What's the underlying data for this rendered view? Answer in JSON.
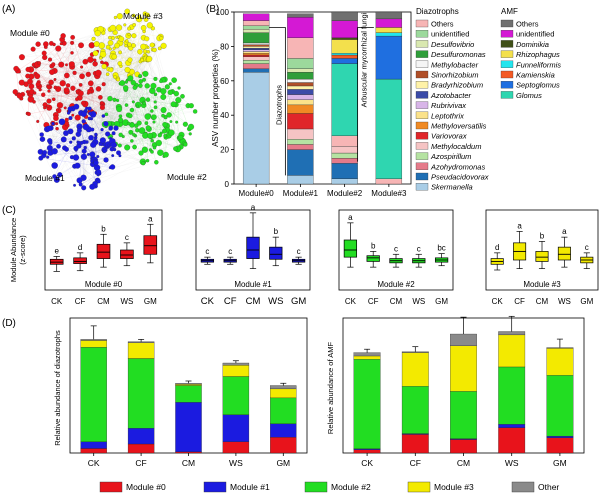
{
  "panel_labels": [
    "(A)",
    "(B)",
    "(C)",
    "(D)"
  ],
  "colors": {
    "m0": "#e8131b",
    "m1": "#1b1be0",
    "m2": "#22dd22",
    "m3": "#f5f500",
    "other": "#8a8a8a"
  },
  "network": {
    "modules": [
      {
        "label": "Module #0"
      },
      {
        "label": "Module #1"
      },
      {
        "label": "Module #2"
      },
      {
        "label": "Module #3"
      }
    ]
  },
  "chart_data": [
    {
      "id": "B",
      "type": "bar",
      "stacked": true,
      "ylabel": "ASV number properties (%)",
      "ylim": [
        0,
        100
      ],
      "yticks": [
        0,
        20,
        40,
        60,
        80,
        100
      ],
      "categories": [
        "Module#0",
        "Module#1",
        "Module#2",
        "Module#3"
      ],
      "annotations": [
        "Diazotrophs",
        "Arbuscular mycorrhizal fungi"
      ],
      "legend_groups": [
        {
          "title": "Diazotrophs",
          "entries": [
            {
              "name": "Others",
              "color": "#f7b5b5"
            },
            {
              "name": "unidentified",
              "color": "#9cd99c"
            },
            {
              "name": "Desulfovibrio",
              "color": "#d9e8b0"
            },
            {
              "name": "Desulfuromonas",
              "color": "#2f9e3a"
            },
            {
              "name": "Methylobacter",
              "color": "#f5f5f5"
            },
            {
              "name": "Sinorhizobium",
              "color": "#b04f28"
            },
            {
              "name": "Bradyrhizobium",
              "color": "#fff2a8"
            },
            {
              "name": "Azotobacter",
              "color": "#3b4ba8"
            },
            {
              "name": "Rubrivivax",
              "color": "#d8b5e8"
            },
            {
              "name": "Leptothrix",
              "color": "#fbe28a"
            },
            {
              "name": "Methyloversatilis",
              "color": "#f08a24"
            },
            {
              "name": "Variovorax",
              "color": "#e0262a"
            },
            {
              "name": "Methylocaldum",
              "color": "#f6c4c4"
            },
            {
              "name": "Azospirillum",
              "color": "#b5e3a2"
            },
            {
              "name": "Azohydromonas",
              "color": "#e57a8a"
            },
            {
              "name": "Pseudacidovorax",
              "color": "#1f6fb4"
            },
            {
              "name": "Skermanella",
              "color": "#a9cde6"
            }
          ]
        },
        {
          "title": "AMF",
          "entries": [
            {
              "name": "Others",
              "color": "#707070"
            },
            {
              "name": "unidentified",
              "color": "#d419d4"
            },
            {
              "name": "Dominikia",
              "color": "#405018"
            },
            {
              "name": "Rhizophagus",
              "color": "#f3e04c"
            },
            {
              "name": "Funneliformis",
              "color": "#22e5ee"
            },
            {
              "name": "Kamienskia",
              "color": "#f45a24"
            },
            {
              "name": "Septoglomus",
              "color": "#1f6fe0"
            },
            {
              "name": "Glomus",
              "color": "#2fd6b0"
            }
          ]
        }
      ],
      "series": [
        {
          "name": "Skermanella",
          "color": "#a9cde6",
          "values": [
            65,
            5,
            3,
            0
          ]
        },
        {
          "name": "Pseudacidovorax",
          "color": "#1f6fb4",
          "values": [
            2,
            15,
            9,
            0
          ]
        },
        {
          "name": "Azohydromonas",
          "color": "#e57a8a",
          "values": [
            3,
            3,
            3,
            0
          ]
        },
        {
          "name": "Azospirillum",
          "color": "#b5e3a2",
          "values": [
            2,
            3,
            3,
            0
          ]
        },
        {
          "name": "Methylocaldum",
          "color": "#f6c4c4",
          "values": [
            2,
            6,
            4,
            0
          ]
        },
        {
          "name": "Variovorax",
          "color": "#e0262a",
          "values": [
            1,
            9,
            0,
            0
          ]
        },
        {
          "name": "Methyloversatilis",
          "color": "#f08a24",
          "values": [
            1,
            5,
            0,
            0
          ]
        },
        {
          "name": "Leptothrix",
          "color": "#fbe28a",
          "values": [
            1,
            3,
            0,
            0
          ]
        },
        {
          "name": "Rubrivivax",
          "color": "#d8b5e8",
          "values": [
            1,
            3,
            0,
            0
          ]
        },
        {
          "name": "Azotobacter",
          "color": "#3b4ba8",
          "values": [
            1,
            3,
            0,
            0
          ]
        },
        {
          "name": "Bradyrhizobium",
          "color": "#fff2a8",
          "values": [
            1,
            2,
            0,
            0
          ]
        },
        {
          "name": "Sinorhizobium",
          "color": "#b04f28",
          "values": [
            1,
            2,
            0,
            0
          ]
        },
        {
          "name": "Methylobacter",
          "color": "#f5f5f5",
          "values": [
            1,
            2,
            0,
            0
          ]
        },
        {
          "name": "Desulfuromonas",
          "color": "#2f9e3a",
          "values": [
            6,
            4,
            0,
            0
          ]
        },
        {
          "name": "Desulfovibrio",
          "color": "#d9e8b0",
          "values": [
            2,
            2,
            0,
            0
          ]
        },
        {
          "name": "unidentified",
          "color": "#9cd99c",
          "values": [
            2,
            6,
            0,
            0
          ]
        },
        {
          "name": "Others",
          "color": "#f7b5b5",
          "values": [
            3,
            12,
            6,
            3
          ]
        },
        {
          "name": "Glomus",
          "color": "#2fd6b0",
          "values": [
            0,
            0,
            42,
            58
          ]
        },
        {
          "name": "Septoglomus",
          "color": "#1f6fe0",
          "values": [
            0,
            0,
            3,
            25
          ]
        },
        {
          "name": "Kamienskia",
          "color": "#f45a24",
          "values": [
            0,
            0,
            2,
            0
          ]
        },
        {
          "name": "Funneliformis",
          "color": "#22e5ee",
          "values": [
            0,
            0,
            1,
            2
          ]
        },
        {
          "name": "Rhizophagus",
          "color": "#f3e04c",
          "values": [
            0,
            0,
            8,
            3
          ]
        },
        {
          "name": "Dominikia",
          "color": "#405018",
          "values": [
            0,
            0,
            1,
            0
          ]
        },
        {
          "name": "unidentified",
          "color": "#d419d4",
          "values": [
            4,
            12,
            10,
            5
          ]
        },
        {
          "name": "Others",
          "color": "#707070",
          "values": [
            0,
            2,
            5,
            4
          ]
        }
      ]
    },
    {
      "id": "C",
      "type": "box",
      "ylabel": "Module Abundance\n(z-score)",
      "categories": [
        "CK",
        "CF",
        "CM",
        "WS",
        "GM"
      ],
      "ylim": [
        -2.4,
        3.2
      ],
      "panels": [
        {
          "title": "Module #0",
          "color": "#e8131b",
          "letters": [
            "e",
            "d",
            "b",
            "c",
            "a"
          ],
          "boxes": [
            {
              "min": -1.1,
              "q1": -0.6,
              "median": -0.45,
              "q3": -0.25,
              "max": -0.05
            },
            {
              "min": -1.05,
              "q1": -0.55,
              "median": -0.4,
              "q3": -0.15,
              "max": 0.2
            },
            {
              "min": -0.8,
              "q1": -0.2,
              "median": 0.25,
              "q3": 0.8,
              "max": 1.5
            },
            {
              "min": -0.7,
              "q1": -0.2,
              "median": 0.05,
              "q3": 0.4,
              "max": 0.9
            },
            {
              "min": -0.5,
              "q1": 0.1,
              "median": 0.7,
              "q3": 1.4,
              "max": 2.2
            }
          ]
        },
        {
          "title": "Module #1",
          "color": "#1b1be0",
          "letters": [
            "c",
            "c",
            "a",
            "b",
            "c"
          ],
          "boxes": [
            {
              "min": -0.6,
              "q1": -0.45,
              "median": -0.35,
              "q3": -0.25,
              "max": -0.1
            },
            {
              "min": -0.6,
              "q1": -0.45,
              "median": -0.35,
              "q3": -0.25,
              "max": -0.1
            },
            {
              "min": -0.9,
              "q1": -0.2,
              "median": 0.4,
              "q3": 1.3,
              "max": 3.0
            },
            {
              "min": -0.7,
              "q1": -0.25,
              "median": 0.1,
              "q3": 0.6,
              "max": 1.3
            },
            {
              "min": -0.6,
              "q1": -0.45,
              "median": -0.35,
              "q3": -0.25,
              "max": -0.1
            }
          ]
        },
        {
          "title": "Module #2",
          "color": "#22dd22",
          "letters": [
            "a",
            "b",
            "c",
            "c",
            "bc"
          ],
          "boxes": [
            {
              "min": -0.8,
              "q1": -0.1,
              "median": 0.4,
              "q3": 1.1,
              "max": 2.3
            },
            {
              "min": -0.8,
              "q1": -0.4,
              "median": -0.15,
              "q3": 0.0,
              "max": 0.3
            },
            {
              "min": -0.8,
              "q1": -0.5,
              "median": -0.35,
              "q3": -0.2,
              "max": 0.1
            },
            {
              "min": -0.8,
              "q1": -0.5,
              "median": -0.35,
              "q3": -0.2,
              "max": 0.1
            },
            {
              "min": -0.7,
              "q1": -0.45,
              "median": -0.3,
              "q3": -0.15,
              "max": 0.15
            }
          ]
        },
        {
          "title": "Module #3",
          "color": "#f3ea00",
          "letters": [
            "d",
            "a",
            "b",
            "a",
            "c"
          ],
          "boxes": [
            {
              "min": -1.0,
              "q1": -0.6,
              "median": -0.4,
              "q3": -0.2,
              "max": 0.2
            },
            {
              "min": -0.9,
              "q1": -0.3,
              "median": 0.3,
              "q3": 0.9,
              "max": 1.7
            },
            {
              "min": -0.9,
              "q1": -0.4,
              "median": -0.1,
              "q3": 0.3,
              "max": 1.0
            },
            {
              "min": -0.8,
              "q1": -0.3,
              "median": 0.1,
              "q3": 0.6,
              "max": 1.3
            },
            {
              "min": -0.9,
              "q1": -0.5,
              "median": -0.3,
              "q3": -0.1,
              "max": 0.2
            }
          ]
        }
      ]
    },
    {
      "id": "D-left",
      "type": "bar",
      "stacked": true,
      "ylabel": "Relative abundance of diazotrophs",
      "categories": [
        "CK",
        "CF",
        "CM",
        "WS",
        "GM"
      ],
      "ylim": [
        0,
        0.6
      ],
      "series": [
        {
          "name": "Module #0",
          "color": "#e8131b",
          "values": [
            0.02,
            0.04,
            0.005,
            0.05,
            0.07
          ]
        },
        {
          "name": "Module #1",
          "color": "#1b1be0",
          "values": [
            0.03,
            0.07,
            0.22,
            0.12,
            0.06
          ]
        },
        {
          "name": "Module #2",
          "color": "#22dd22",
          "values": [
            0.42,
            0.31,
            0.075,
            0.17,
            0.115
          ]
        },
        {
          "name": "Module #3",
          "color": "#f3ea00",
          "values": [
            0.03,
            0.07,
            0.005,
            0.05,
            0.04
          ]
        },
        {
          "name": "Other",
          "color": "#8a8a8a",
          "values": [
            0.005,
            0.005,
            0.005,
            0.01,
            0.015
          ]
        }
      ],
      "errors": [
        0.06,
        0.01,
        0.01,
        0.01,
        0.01
      ]
    },
    {
      "id": "D-right",
      "type": "bar",
      "stacked": true,
      "ylabel": "Relative abundance of AMF",
      "categories": [
        "CK",
        "CF",
        "CM",
        "WS",
        "GM"
      ],
      "ylim": [
        0,
        0.8
      ],
      "series": [
        {
          "name": "Module #0",
          "color": "#e8131b",
          "values": [
            0.02,
            0.11,
            0.08,
            0.15,
            0.09
          ]
        },
        {
          "name": "Module #1",
          "color": "#1b1be0",
          "values": [
            0.005,
            0.005,
            0.005,
            0.02,
            0.01
          ]
        },
        {
          "name": "Module #2",
          "color": "#22dd22",
          "values": [
            0.53,
            0.28,
            0.28,
            0.34,
            0.36
          ]
        },
        {
          "name": "Module #3",
          "color": "#f3ea00",
          "values": [
            0.02,
            0.2,
            0.27,
            0.19,
            0.16
          ]
        },
        {
          "name": "Other",
          "color": "#8a8a8a",
          "values": [
            0.02,
            0.005,
            0.07,
            0.02,
            0.005
          ]
        }
      ],
      "errors": [
        0.02,
        0.03,
        0.1,
        0.09,
        0.05
      ]
    }
  ],
  "legend_D": [
    {
      "name": "Module #0",
      "color": "#e8131b"
    },
    {
      "name": "Module #1",
      "color": "#1b1be0"
    },
    {
      "name": "Module #2",
      "color": "#22dd22"
    },
    {
      "name": "Module #3",
      "color": "#f3ea00"
    },
    {
      "name": "Other",
      "color": "#8a8a8a"
    }
  ]
}
